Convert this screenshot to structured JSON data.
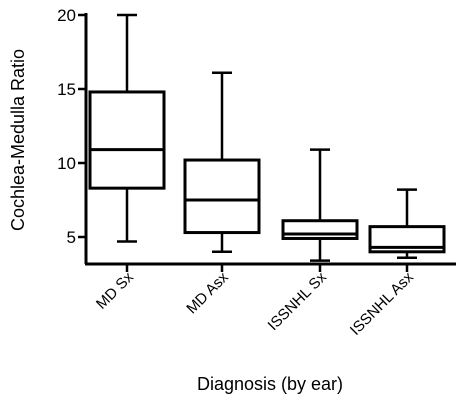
{
  "chart_data": {
    "type": "box",
    "xlabel": "Diagnosis (by ear)",
    "ylabel": "Cochlea-Medulla Ratio",
    "ylim": [
      3,
      20
    ],
    "yticks": [
      5,
      10,
      15,
      20
    ],
    "grid": false,
    "categories": [
      "MD Sx",
      "MD Asx",
      "ISSNHL Sx",
      "ISSNHL Asx"
    ],
    "boxes": [
      {
        "category": "MD Sx",
        "min": 4.7,
        "q1": 8.3,
        "median": 10.9,
        "q3": 14.8,
        "max": 20.0
      },
      {
        "category": "MD Asx",
        "min": 4.0,
        "q1": 5.3,
        "median": 7.5,
        "q3": 10.2,
        "max": 16.1
      },
      {
        "category": "ISSNHL Sx",
        "min": 3.4,
        "q1": 4.9,
        "median": 5.2,
        "q3": 6.1,
        "max": 10.9
      },
      {
        "category": "ISSNHL Asx",
        "min": 3.6,
        "q1": 4.0,
        "median": 4.3,
        "q3": 5.7,
        "max": 8.2
      }
    ]
  }
}
